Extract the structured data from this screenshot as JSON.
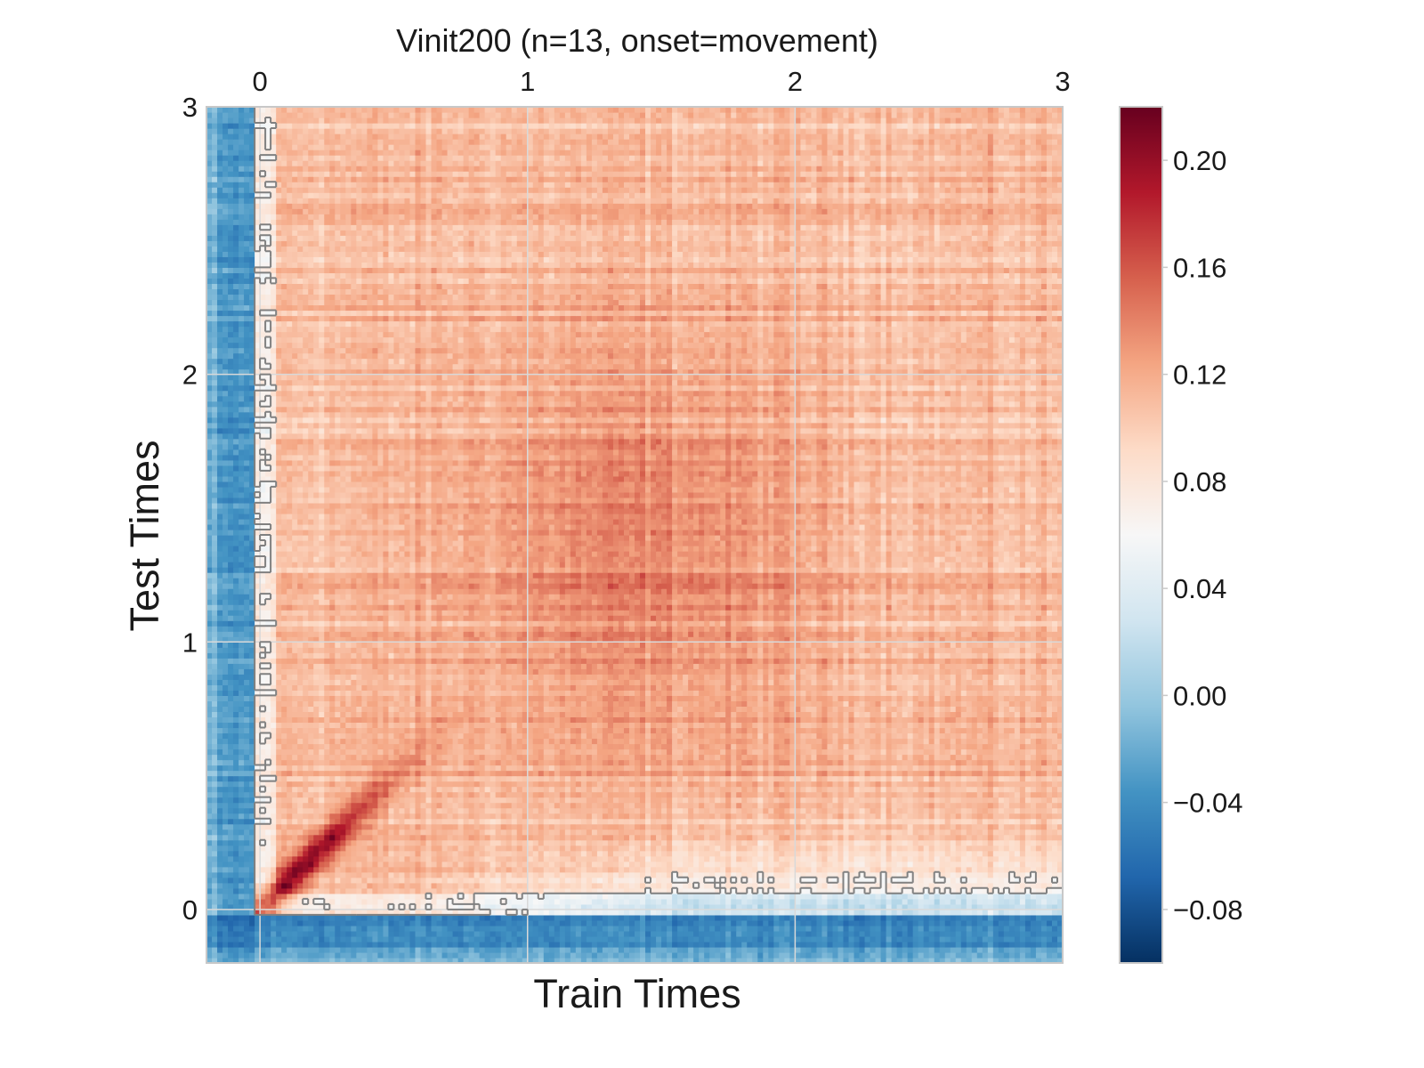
{
  "chart_data": {
    "type": "heatmap",
    "title": "Vinit200 (n=13, onset=movement)",
    "xlabel": "Train Times",
    "ylabel": "Test Times",
    "xlim": [
      -0.2,
      3.0
    ],
    "ylim": [
      -0.2,
      3.0
    ],
    "xticks": [
      0,
      1,
      2,
      3
    ],
    "yticks": [
      0,
      1,
      2,
      3
    ],
    "xtick_labels": [
      "0",
      "1",
      "2",
      "3"
    ],
    "ytick_labels": [
      "0",
      "1",
      "2",
      "3"
    ],
    "x_axis_position": "top",
    "grid": true,
    "grid_resolution": 0.02,
    "colormap": "RdBu_r",
    "colorbar": {
      "vmin": -0.1,
      "vmax": 0.22,
      "ticks": [
        -0.08,
        -0.04,
        0.0,
        0.04,
        0.08,
        0.12,
        0.16,
        0.2
      ],
      "tick_labels": [
        "−0.08",
        "−0.04",
        "0.00",
        "0.04",
        "0.08",
        "0.12",
        "0.16",
        "0.20"
      ]
    },
    "contour": {
      "color": "#808080",
      "description": "significance boundary"
    },
    "value_pattern": {
      "baseline_region_value": -0.02,
      "diagonal_peak": {
        "train": 0.15,
        "test": 0.15,
        "value": 0.21
      },
      "late_plateau_value": 0.11,
      "center_plateau": {
        "train": 1.4,
        "test": 1.4,
        "value": 0.14
      },
      "near_chance_band_test_range": [
        0.05,
        0.35
      ]
    }
  },
  "colors": {
    "contour": "#808080",
    "grid": "#d9d9d9",
    "frame": "#c8c8c8"
  }
}
